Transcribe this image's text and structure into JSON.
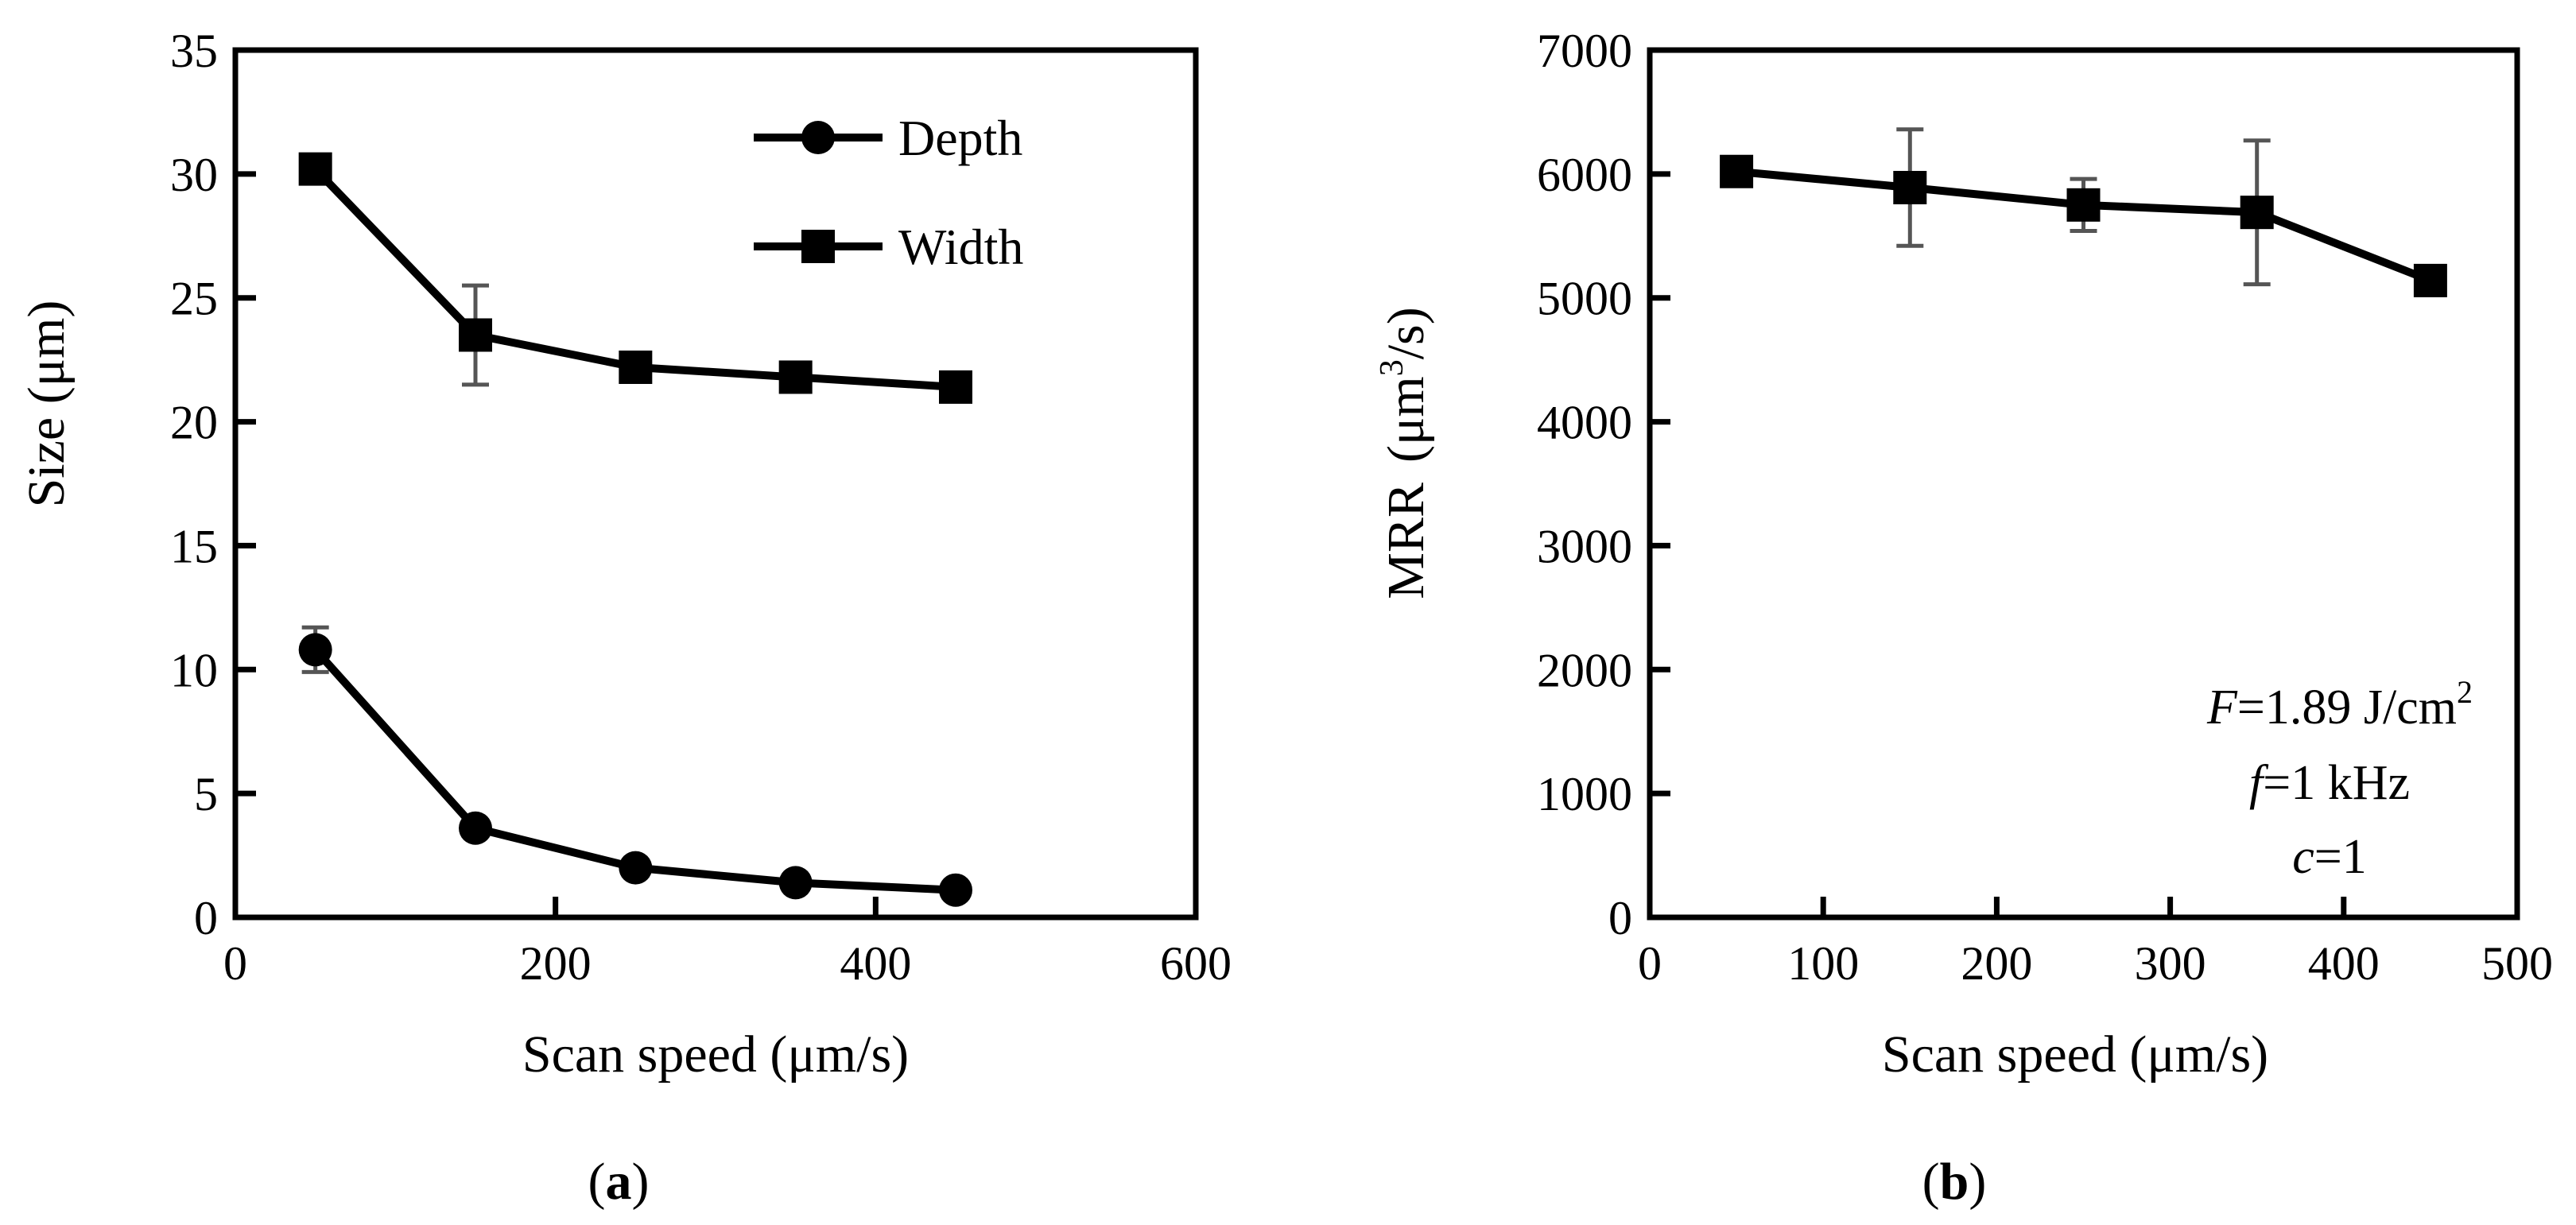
{
  "chart_data": [
    {
      "panel": "a",
      "panel_label": "(a)",
      "type": "line",
      "xlabel": "Scan speed (μm/s)",
      "ylabel": "Size (μm)",
      "xlim": [
        0,
        600
      ],
      "ylim": [
        0,
        35
      ],
      "xticks": [
        0,
        200,
        400,
        600
      ],
      "yticks": [
        0,
        5,
        10,
        15,
        20,
        25,
        30,
        35
      ],
      "x": [
        50,
        150,
        250,
        350,
        450
      ],
      "series": [
        {
          "name": "Depth",
          "marker": "circle",
          "values": [
            10.8,
            3.6,
            2.0,
            1.4,
            1.1
          ],
          "errors": [
            0.9,
            0,
            0,
            0,
            0
          ]
        },
        {
          "name": "Width",
          "marker": "square",
          "values": [
            30.2,
            23.5,
            22.2,
            21.8,
            21.4
          ],
          "errors": [
            0,
            2.0,
            0,
            0,
            0
          ]
        }
      ],
      "legend": "top-right"
    },
    {
      "panel": "b",
      "panel_label": "(b)",
      "type": "line",
      "xlabel": "Scan speed (μm/s)",
      "ylabel_main": "MRR",
      "ylabel_unit": "(μm",
      "ylabel_sup": "3",
      "ylabel_tail": "/s)",
      "xlim": [
        0,
        500
      ],
      "ylim": [
        0,
        7000
      ],
      "xticks": [
        0,
        100,
        200,
        300,
        400,
        500
      ],
      "yticks": [
        0,
        1000,
        2000,
        3000,
        4000,
        5000,
        6000,
        7000
      ],
      "x": [
        50,
        150,
        250,
        350,
        450
      ],
      "series": [
        {
          "name": "MRR",
          "marker": "square",
          "values": [
            6020,
            5890,
            5750,
            5690,
            5140
          ],
          "errors": [
            0,
            470,
            210,
            580,
            0
          ]
        }
      ],
      "annotations": {
        "F_var": "F",
        "F_text": "=1.89 J/cm",
        "F_sup": "2",
        "f_var": "f",
        "f_text": "=1 kHz",
        "c_var": "c",
        "c_text": "=1"
      }
    }
  ]
}
